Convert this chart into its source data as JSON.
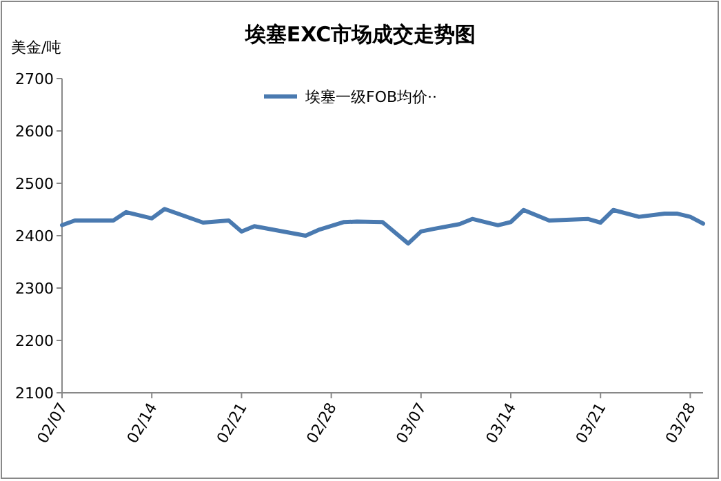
{
  "chart_data": {
    "type": "line",
    "title": "埃塞EXC市场成交走势图",
    "ylabel": "美金/吨",
    "x": [
      "--02-07",
      "--02-08",
      "--02-11",
      "--02-12",
      "--02-14",
      "--02-15",
      "--02-18",
      "--02-20",
      "--02-21",
      "--02-22",
      "--02-26",
      "--02-27",
      "--03-01",
      "--03-02",
      "--03-04",
      "--03-06",
      "--03-07",
      "--03-08",
      "--03-10",
      "--03-11",
      "--03-13",
      "--03-14",
      "--03-15",
      "--03-17",
      "--03-20",
      "--03-21",
      "--03-22",
      "--03-24",
      "--03-26",
      "--03-27",
      "--03-28",
      "--03-29"
    ],
    "series": [
      {
        "name": "埃塞一级FOB均价··",
        "color": "#4a7ab0",
        "values": [
          2420,
          2429,
          2429,
          2445,
          2433,
          2451,
          2425,
          2429,
          2408,
          2418,
          2400,
          2411,
          2426,
          2427,
          2426,
          2385,
          2408,
          2413,
          2422,
          2432,
          2420,
          2426,
          2449,
          2429,
          2432,
          2425,
          2449,
          2436,
          2442,
          2442,
          2436,
          2423
        ]
      }
    ],
    "xlim": [
      "--02-07",
      "--03-29"
    ],
    "xticks": [
      {
        "value": "--02-07",
        "label": "02/07"
      },
      {
        "value": "--02-14",
        "label": "02/14"
      },
      {
        "value": "--02-21",
        "label": "02/21"
      },
      {
        "value": "--02-28",
        "label": "02/28"
      },
      {
        "value": "--03-07",
        "label": "03/07"
      },
      {
        "value": "--03-14",
        "label": "03/14"
      },
      {
        "value": "--03-21",
        "label": "03/21"
      },
      {
        "value": "--03-28",
        "label": "03/28"
      }
    ],
    "ylim": [
      2100,
      2700
    ],
    "yticks": [
      2100,
      2200,
      2300,
      2400,
      2500,
      2600,
      2700
    ],
    "legend": "top",
    "line_style": "solid"
  }
}
